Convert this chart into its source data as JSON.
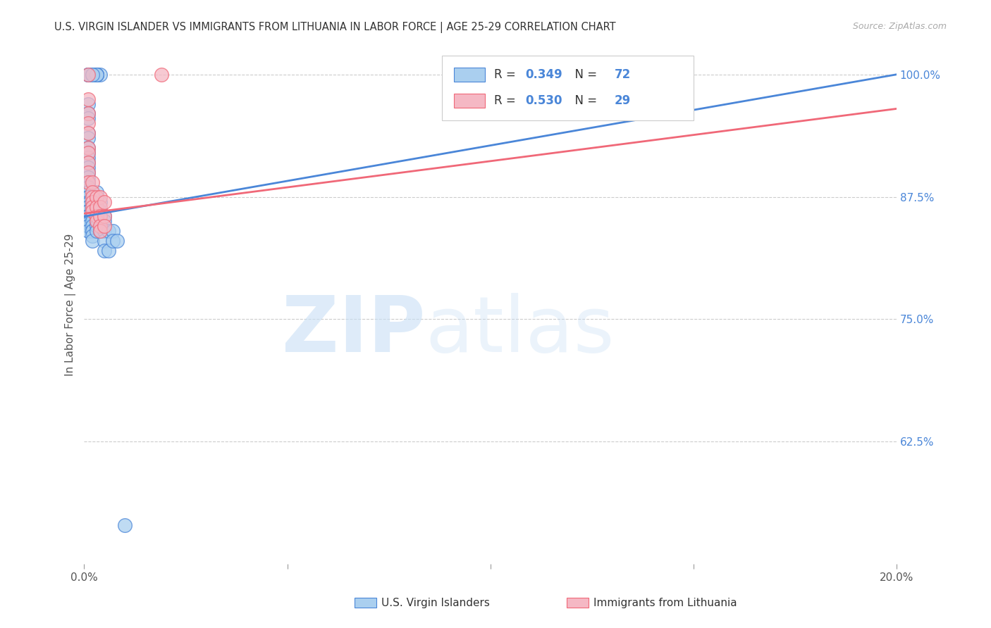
{
  "title": "U.S. VIRGIN ISLANDER VS IMMIGRANTS FROM LITHUANIA IN LABOR FORCE | AGE 25-29 CORRELATION CHART",
  "source": "Source: ZipAtlas.com",
  "ylabel": "In Labor Force | Age 25-29",
  "xlim": [
    0.0,
    0.2
  ],
  "ylim": [
    0.5,
    1.03
  ],
  "yticks": [
    0.625,
    0.75,
    0.875,
    1.0
  ],
  "ytick_labels": [
    "62.5%",
    "75.0%",
    "87.5%",
    "100.0%"
  ],
  "xticks": [
    0.0,
    0.05,
    0.1,
    0.15,
    0.2
  ],
  "xtick_labels": [
    "0.0%",
    "",
    "",
    "",
    "20.0%"
  ],
  "blue_R": 0.349,
  "blue_N": 72,
  "pink_R": 0.53,
  "pink_N": 29,
  "blue_color": "#aacfef",
  "pink_color": "#f5b8c4",
  "blue_line_color": "#4a86d8",
  "pink_line_color": "#f06878",
  "legend_label_blue": "U.S. Virgin Islanders",
  "legend_label_pink": "Immigrants from Lithuania",
  "blue_x": [
    0.002,
    0.003,
    0.001,
    0.004,
    0.003,
    0.001,
    0.003,
    0.001,
    0.003,
    0.002,
    0.001,
    0.001,
    0.001,
    0.001,
    0.001,
    0.001,
    0.001,
    0.001,
    0.001,
    0.001,
    0.001,
    0.001,
    0.001,
    0.001,
    0.001,
    0.001,
    0.001,
    0.001,
    0.001,
    0.001,
    0.001,
    0.001,
    0.001,
    0.001,
    0.001,
    0.001,
    0.001,
    0.001,
    0.001,
    0.001,
    0.002,
    0.002,
    0.002,
    0.002,
    0.002,
    0.002,
    0.002,
    0.002,
    0.002,
    0.002,
    0.003,
    0.003,
    0.003,
    0.003,
    0.003,
    0.003,
    0.003,
    0.004,
    0.004,
    0.004,
    0.004,
    0.005,
    0.005,
    0.005,
    0.005,
    0.005,
    0.006,
    0.006,
    0.007,
    0.007,
    0.008,
    0.01
  ],
  "blue_y": [
    1.0,
    1.0,
    1.0,
    1.0,
    1.0,
    1.0,
    1.0,
    1.0,
    1.0,
    1.0,
    0.97,
    0.96,
    0.955,
    0.94,
    0.935,
    0.925,
    0.92,
    0.915,
    0.91,
    0.905,
    0.9,
    0.895,
    0.89,
    0.89,
    0.885,
    0.88,
    0.88,
    0.875,
    0.875,
    0.87,
    0.868,
    0.865,
    0.86,
    0.86,
    0.855,
    0.855,
    0.85,
    0.848,
    0.845,
    0.84,
    0.87,
    0.865,
    0.86,
    0.855,
    0.85,
    0.845,
    0.84,
    0.84,
    0.835,
    0.83,
    0.88,
    0.87,
    0.86,
    0.855,
    0.85,
    0.845,
    0.84,
    0.87,
    0.86,
    0.855,
    0.84,
    0.855,
    0.85,
    0.84,
    0.83,
    0.82,
    0.84,
    0.82,
    0.84,
    0.83,
    0.83,
    0.54
  ],
  "pink_x": [
    0.001,
    0.001,
    0.001,
    0.001,
    0.001,
    0.001,
    0.001,
    0.001,
    0.001,
    0.001,
    0.002,
    0.002,
    0.002,
    0.002,
    0.002,
    0.002,
    0.003,
    0.003,
    0.003,
    0.003,
    0.004,
    0.004,
    0.004,
    0.004,
    0.004,
    0.005,
    0.005,
    0.005,
    0.019
  ],
  "pink_y": [
    1.0,
    0.975,
    0.96,
    0.95,
    0.94,
    0.925,
    0.92,
    0.91,
    0.9,
    0.89,
    0.89,
    0.88,
    0.875,
    0.87,
    0.865,
    0.86,
    0.875,
    0.865,
    0.855,
    0.85,
    0.875,
    0.865,
    0.855,
    0.845,
    0.84,
    0.87,
    0.855,
    0.845,
    1.0
  ],
  "blue_trend_x": [
    0.0,
    0.2
  ],
  "blue_trend_y": [
    0.855,
    1.0
  ],
  "pink_trend_x": [
    0.0,
    0.2
  ],
  "pink_trend_y": [
    0.858,
    0.965
  ]
}
